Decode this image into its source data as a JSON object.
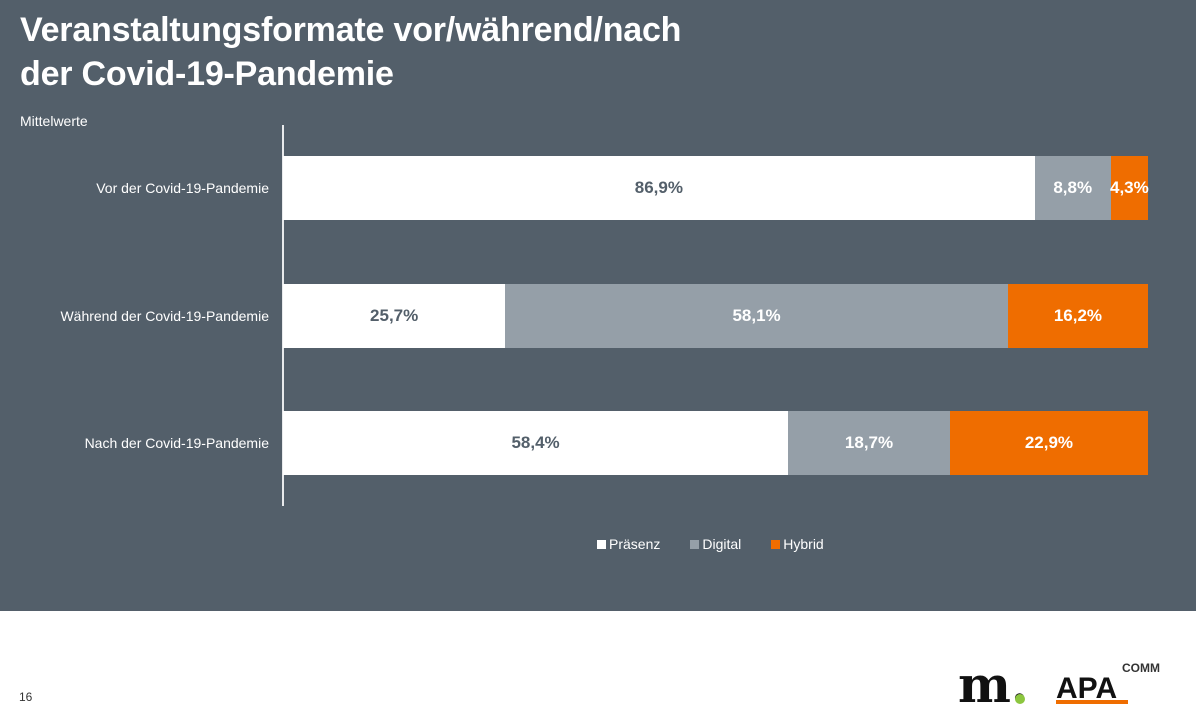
{
  "title_lines": [
    "Veranstaltungsformate vor/während/nach",
    "der Covid-19-Pandemie"
  ],
  "subtitle": "Mittelwerte",
  "page_number": "16",
  "logos": {
    "left": "m.",
    "right_main": "APA",
    "right_super": "COMM"
  },
  "colors": {
    "background": "#535f6a",
    "praesenz": "#ffffff",
    "digital": "#959fa8",
    "hybrid": "#ef6d00",
    "label_on_white": "#535f6a",
    "label_on_color": "#ffffff"
  },
  "chart_data": {
    "type": "bar",
    "orientation": "horizontal",
    "stacked": true,
    "categories": [
      "Vor der Covid-19-Pandemie",
      "Während der Covid-19-Pandemie",
      "Nach der Covid-19-Pandemie"
    ],
    "series": [
      {
        "name": "Präsenz",
        "values": [
          86.9,
          25.7,
          58.4
        ],
        "labels": [
          "86,9%",
          "25,7%",
          "58,4%"
        ]
      },
      {
        "name": "Digital",
        "values": [
          8.8,
          58.1,
          18.7
        ],
        "labels": [
          "8,8%",
          "58,1%",
          "18,7%"
        ]
      },
      {
        "name": "Hybrid",
        "values": [
          4.3,
          16.2,
          22.9
        ],
        "labels": [
          "4,3%",
          "16,2%",
          "22,9%"
        ]
      }
    ],
    "xlim": [
      0,
      100
    ],
    "unit": "%",
    "legend_position": "bottom",
    "grid": false
  }
}
